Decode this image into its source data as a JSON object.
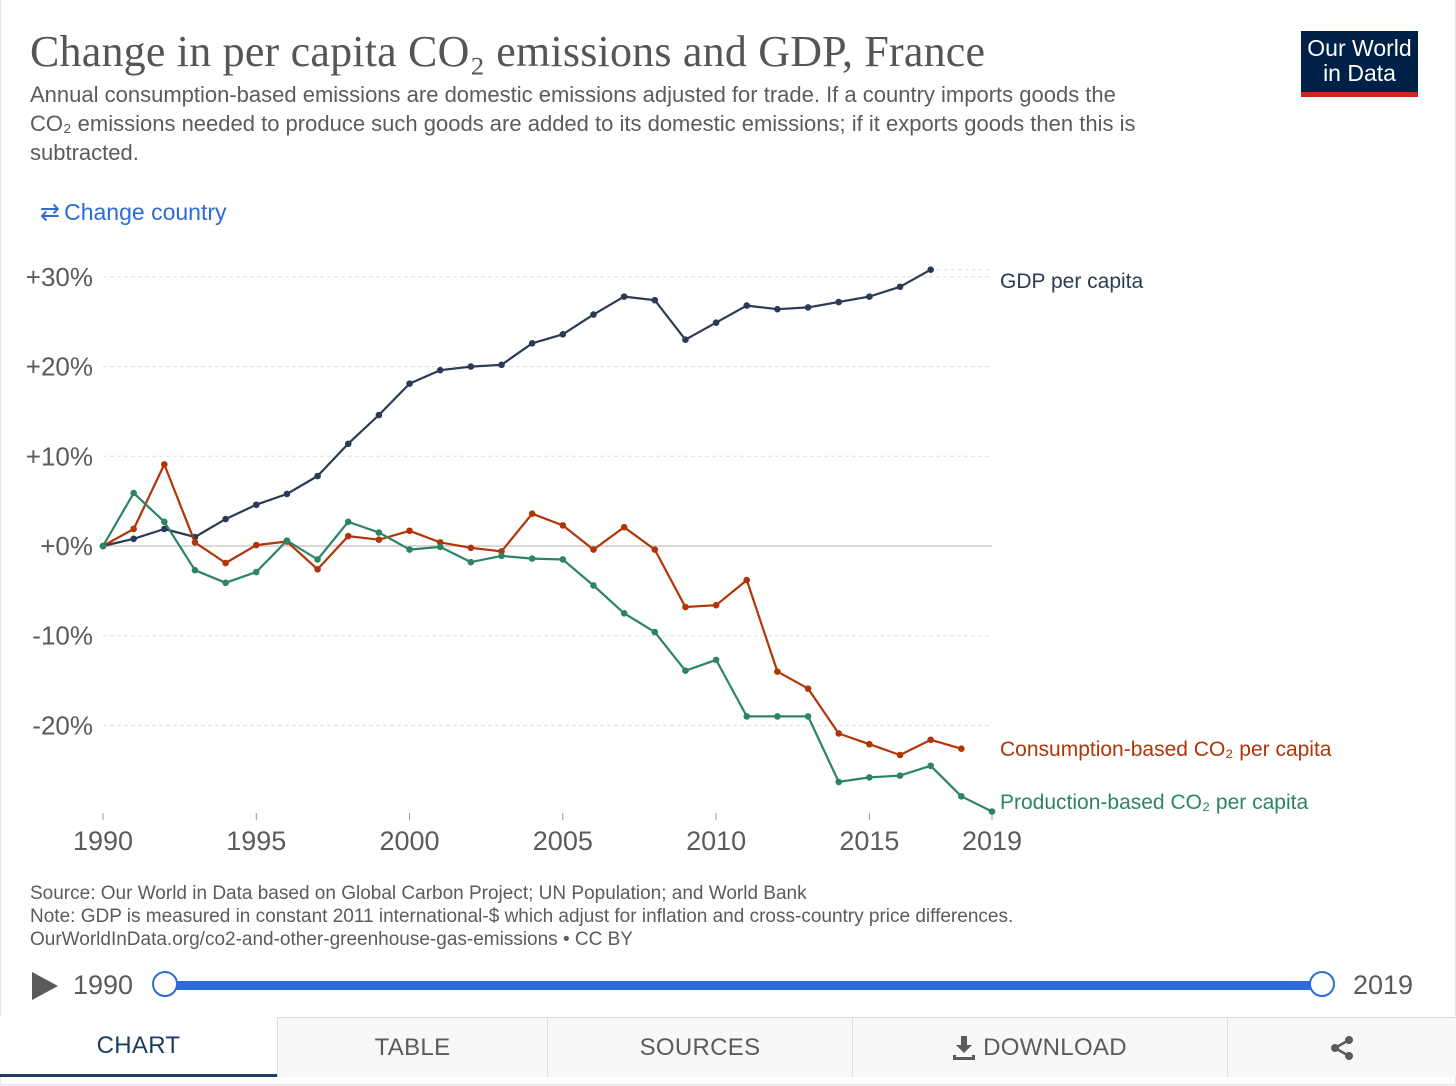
{
  "header": {
    "title": "Change in per capita CO₂ emissions and GDP, France",
    "subtitle_line1": "Annual consumption-based emissions are domestic emissions adjusted for trade. If a country imports goods the",
    "subtitle_line2": "CO₂ emissions needed to produce such goods are added to its domestic emissions; if it exports goods then this is",
    "subtitle_line3": "subtracted.",
    "logo_line1": "Our World",
    "logo_line2": "in Data"
  },
  "controls": {
    "change_country_icon": "swap-arrows-icon",
    "change_country_glyph": "⇄",
    "change_country_label": "Change country"
  },
  "chart_data": {
    "type": "line",
    "title": "Change in per capita CO₂ emissions and GDP, France",
    "xlabel": "",
    "ylabel": "",
    "xlim": [
      1990,
      2019
    ],
    "ylim": [
      -30,
      33
    ],
    "y_ticks": [
      30,
      20,
      10,
      0,
      -10,
      -20
    ],
    "y_tick_labels": [
      "+30%",
      "+20%",
      "+10%",
      "+0%",
      "-10%",
      "-20%"
    ],
    "x_ticks": [
      1990,
      1995,
      2000,
      2005,
      2010,
      2015,
      2019
    ],
    "x_tick_labels": [
      "1990",
      "1995",
      "2000",
      "2005",
      "2010",
      "2015",
      "2019"
    ],
    "grid": true,
    "legend": "line-end labels on right",
    "series": [
      {
        "name": "GDP per capita",
        "color": "#2b3a55",
        "x": [
          1990,
          1991,
          1992,
          1993,
          1994,
          1995,
          1996,
          1997,
          1998,
          1999,
          2000,
          2001,
          2002,
          2003,
          2004,
          2005,
          2006,
          2007,
          2008,
          2009,
          2010,
          2011,
          2012,
          2013,
          2014,
          2015,
          2016,
          2017
        ],
        "values": [
          0,
          0.8,
          1.9,
          1.0,
          3.0,
          4.6,
          5.8,
          7.8,
          11.4,
          14.6,
          18.1,
          19.6,
          20.0,
          20.2,
          22.6,
          23.6,
          25.8,
          27.8,
          27.4,
          23.0,
          24.9,
          26.8,
          26.4,
          26.6,
          27.2,
          27.8,
          28.9,
          30.8
        ]
      },
      {
        "name": "Consumption-based CO₂ per capita",
        "color": "#b13507",
        "x": [
          1990,
          1991,
          1992,
          1993,
          1994,
          1995,
          1996,
          1997,
          1998,
          1999,
          2000,
          2001,
          2002,
          2003,
          2004,
          2005,
          2006,
          2007,
          2008,
          2009,
          2010,
          2011,
          2012,
          2013,
          2014,
          2015,
          2016,
          2017,
          2018
        ],
        "values": [
          0,
          1.9,
          9.1,
          0.4,
          -1.9,
          0.1,
          0.5,
          -2.6,
          1.1,
          0.7,
          1.7,
          0.4,
          -0.2,
          -0.6,
          3.6,
          2.3,
          -0.4,
          2.1,
          -0.4,
          -6.8,
          -6.6,
          -3.8,
          -14.0,
          -15.9,
          -20.9,
          -22.1,
          -23.3,
          -21.6,
          -22.6
        ]
      },
      {
        "name": "Production-based CO₂ per capita",
        "color": "#2c8465",
        "x": [
          1990,
          1991,
          1992,
          1993,
          1994,
          1995,
          1996,
          1997,
          1998,
          1999,
          2000,
          2001,
          2002,
          2003,
          2004,
          2005,
          2006,
          2007,
          2008,
          2009,
          2010,
          2011,
          2012,
          2013,
          2014,
          2015,
          2016,
          2017,
          2018,
          2019
        ],
        "values": [
          0,
          5.9,
          2.7,
          -2.7,
          -4.1,
          -2.9,
          0.6,
          -1.5,
          2.7,
          1.5,
          -0.4,
          -0.1,
          -1.8,
          -1.1,
          -1.4,
          -1.5,
          -4.4,
          -7.5,
          -9.6,
          -13.9,
          -12.7,
          -19.0,
          -19.0,
          -19.0,
          -26.3,
          -25.8,
          -25.6,
          -24.5,
          -27.9,
          -29.6
        ]
      }
    ]
  },
  "footer": {
    "source": "Source: Our World in Data based on Global Carbon Project; UN Population; and World Bank",
    "note": "Note: GDP is measured in constant 2011 international-$ which adjust for inflation and cross-country price differences.",
    "url_license": "OurWorldInData.org/co2-and-other-greenhouse-gas-emissions • CC BY"
  },
  "timeline": {
    "play_icon": "play-icon",
    "start_year": "1990",
    "end_year": "2019"
  },
  "tabs": {
    "chart": "CHART",
    "table": "TABLE",
    "sources": "SOURCES",
    "download": "DOWNLOAD",
    "download_icon": "download-icon",
    "share_icon": "share-icon"
  }
}
